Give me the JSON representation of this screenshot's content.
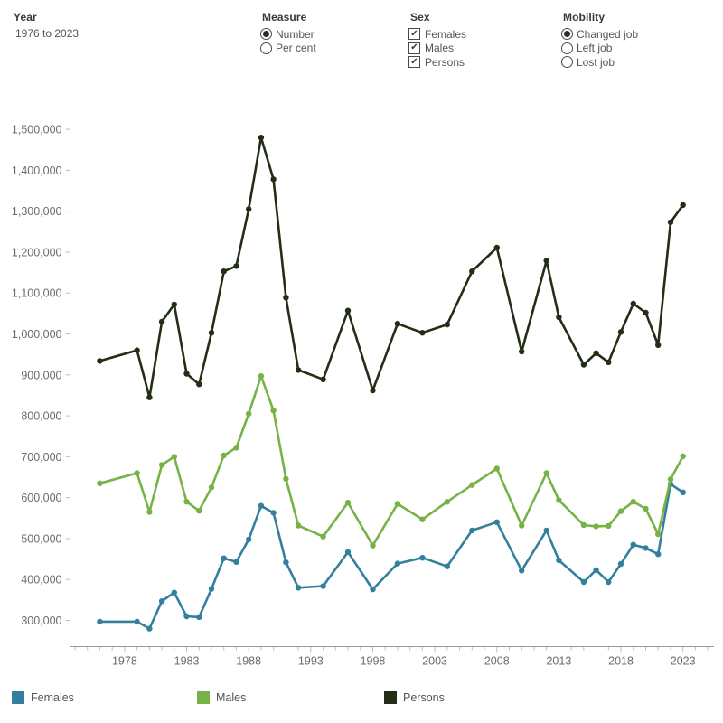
{
  "controls": {
    "year": {
      "label": "Year",
      "value": "1976 to 2023"
    },
    "measure": {
      "label": "Measure",
      "type": "radio",
      "options": [
        {
          "label": "Number",
          "selected": true
        },
        {
          "label": "Per cent",
          "selected": false
        }
      ]
    },
    "sex": {
      "label": "Sex",
      "type": "checkbox",
      "options": [
        {
          "label": "Females",
          "checked": true
        },
        {
          "label": "Males",
          "checked": true
        },
        {
          "label": "Persons",
          "checked": true
        }
      ]
    },
    "mobility": {
      "label": "Mobility",
      "type": "radio",
      "options": [
        {
          "label": "Changed job",
          "selected": true
        },
        {
          "label": "Left job",
          "selected": false
        },
        {
          "label": "Lost job",
          "selected": false
        }
      ]
    }
  },
  "chart_data": {
    "type": "line",
    "title": "",
    "xlabel": "",
    "ylabel": "",
    "grid": false,
    "legend_position": "bottom",
    "x": [
      1976,
      1979,
      1980,
      1981,
      1982,
      1983,
      1984,
      1985,
      1986,
      1987,
      1988,
      1989,
      1990,
      1991,
      1992,
      1994,
      1996,
      1998,
      2000,
      2002,
      2004,
      2006,
      2008,
      2010,
      2012,
      2013,
      2015,
      2016,
      2017,
      2018,
      2019,
      2020,
      2021,
      2022,
      2023
    ],
    "series": [
      {
        "name": "Females",
        "color": "#337f9e",
        "values": [
          297000,
          297000,
          280000,
          347000,
          368000,
          310000,
          308000,
          377000,
          452000,
          443000,
          498000,
          580000,
          563000,
          442000,
          380000,
          384000,
          467000,
          376000,
          439000,
          453000,
          432000,
          520000,
          540000,
          422000,
          520000,
          447000,
          394000,
          423000,
          394000,
          438000,
          485000,
          477000,
          462000,
          633000,
          613000
        ]
      },
      {
        "name": "Males",
        "color": "#76b245",
        "values": [
          635000,
          660000,
          565000,
          680000,
          700000,
          590000,
          568000,
          625000,
          703000,
          722000,
          805000,
          897000,
          813000,
          646000,
          532000,
          505000,
          588000,
          483000,
          585000,
          547000,
          590000,
          631000,
          671000,
          532000,
          660000,
          594000,
          533000,
          530000,
          531000,
          567000,
          590000,
          573000,
          511000,
          645000,
          701000
        ]
      },
      {
        "name": "Persons",
        "color": "#222e15",
        "values": [
          934000,
          960000,
          845000,
          1030000,
          1072000,
          903000,
          877000,
          1003000,
          1153000,
          1166000,
          1305000,
          1480000,
          1378000,
          1089000,
          912000,
          889000,
          1057000,
          862000,
          1025000,
          1003000,
          1023000,
          1153000,
          1211000,
          957000,
          1179000,
          1041000,
          925000,
          953000,
          931000,
          1005000,
          1074000,
          1052000,
          973000,
          1273000,
          1315000
        ]
      }
    ],
    "xlim": [
      1973.6,
      2025.5
    ],
    "ylim": [
      236000,
      1540000
    ],
    "yticks": [
      300000,
      400000,
      500000,
      600000,
      700000,
      800000,
      900000,
      1000000,
      1100000,
      1200000,
      1300000,
      1400000,
      1500000
    ],
    "ytick_labels": [
      "300,000",
      "400,000",
      "500,000",
      "600,000",
      "700,000",
      "800,000",
      "900,000",
      "1,000,000",
      "1,100,000",
      "1,200,000",
      "1,300,000",
      "1,400,000",
      "1,500,000"
    ],
    "xticks_labeled": [
      1978,
      1983,
      1988,
      1993,
      1998,
      2003,
      2008,
      2013,
      2018,
      2023
    ],
    "xticks_minor_range": [
      1974,
      2025
    ]
  },
  "legend": {
    "items": [
      {
        "label": "Females",
        "color": "#337f9e"
      },
      {
        "label": "Males",
        "color": "#76b245"
      },
      {
        "label": "Persons",
        "color": "#222e15"
      }
    ]
  },
  "colors": {
    "background": "#ffffff",
    "axis_line": "#9a9a9a",
    "tick": "#c0c0c0",
    "axis_label": "#6b6b6b",
    "header_text": "#383838",
    "control_text": "#555555"
  }
}
